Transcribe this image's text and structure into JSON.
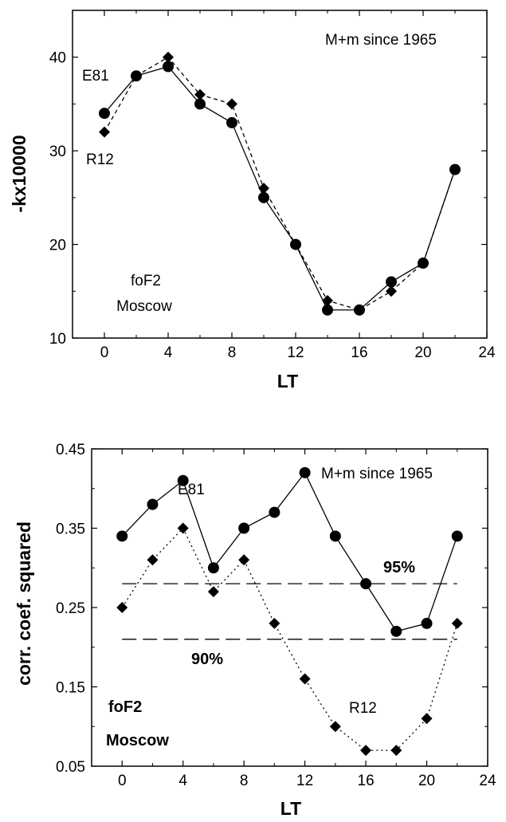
{
  "chart_data": [
    {
      "type": "line",
      "x": [
        0,
        2,
        4,
        6,
        8,
        10,
        12,
        14,
        16,
        18,
        20,
        22
      ],
      "xlabel": "LT",
      "ylabel": "-kx10000",
      "xlim": [
        -2,
        24
      ],
      "ylim": [
        10,
        45
      ],
      "xticks": [
        0,
        4,
        8,
        12,
        16,
        20,
        24
      ],
      "yticks": [
        10,
        20,
        30,
        40
      ],
      "xtick_labels": [
        "0",
        "4",
        "8",
        "12",
        "16",
        "20",
        "24"
      ],
      "ytick_labels": [
        "10",
        "20",
        "30",
        "40"
      ],
      "grid": false,
      "series": [
        {
          "name": "E81",
          "marker": "circle",
          "line": "solid",
          "values": [
            34,
            38,
            39,
            35,
            33,
            25,
            20,
            13,
            13,
            16,
            18,
            28
          ]
        },
        {
          "name": "R12",
          "marker": "diamond",
          "line": "dashed",
          "values": [
            32,
            38,
            40,
            36,
            35,
            26,
            20,
            14,
            13,
            15,
            18,
            28
          ]
        }
      ],
      "annotations": [
        "M+m since 1965",
        "foF2",
        "Moscow"
      ]
    },
    {
      "type": "line",
      "x": [
        0,
        2,
        4,
        6,
        8,
        10,
        12,
        14,
        16,
        18,
        20,
        22
      ],
      "xlabel": "LT",
      "ylabel": "corr. coef. squared",
      "xlim": [
        -2,
        24
      ],
      "ylim": [
        0.05,
        0.45
      ],
      "xticks": [
        0,
        4,
        8,
        12,
        16,
        20,
        24
      ],
      "yticks": [
        0.05,
        0.15,
        0.25,
        0.35,
        0.45
      ],
      "xtick_labels": [
        "0",
        "4",
        "8",
        "12",
        "16",
        "20",
        "24"
      ],
      "ytick_labels": [
        "0.05",
        "0.15",
        "0.25",
        "0.35",
        "0.45"
      ],
      "grid": false,
      "series": [
        {
          "name": "E81",
          "marker": "circle",
          "line": "solid",
          "values": [
            0.34,
            0.38,
            0.41,
            0.3,
            0.35,
            0.37,
            0.42,
            0.34,
            0.28,
            0.22,
            0.23,
            0.34
          ]
        },
        {
          "name": "R12",
          "marker": "diamond",
          "line": "dotted",
          "values": [
            0.25,
            0.31,
            0.35,
            0.27,
            0.31,
            0.23,
            0.16,
            0.1,
            0.07,
            0.07,
            0.11,
            0.23
          ]
        }
      ],
      "reference_lines": [
        {
          "label": "95%",
          "value": 0.28
        },
        {
          "label": "90%",
          "value": 0.21
        }
      ],
      "annotations": [
        "M+m since 1965",
        "foF2",
        "Moscow"
      ]
    }
  ]
}
